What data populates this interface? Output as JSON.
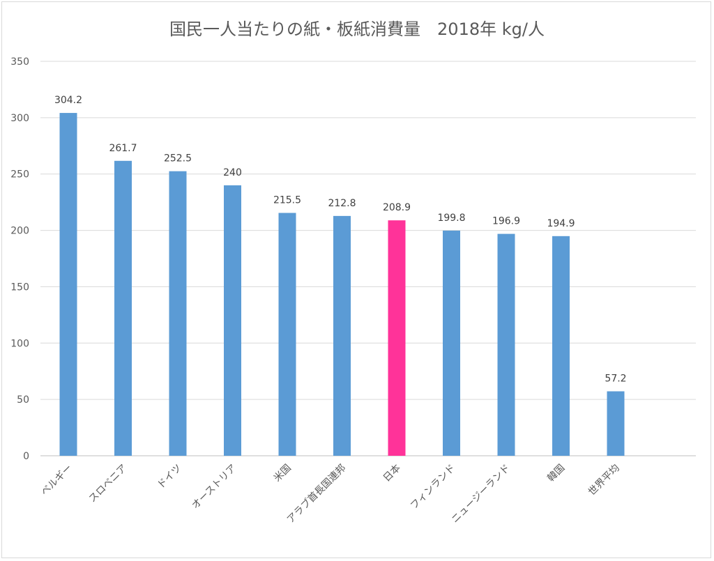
{
  "chart_data": {
    "type": "bar",
    "title": "国民一人当たりの紙・板紙消費量　2018年 kg/人",
    "xlabel": "",
    "ylabel": "",
    "ylim": [
      0,
      350
    ],
    "yticks": [
      0,
      50,
      100,
      150,
      200,
      250,
      300,
      350
    ],
    "grid": true,
    "categories": [
      "ベルギー",
      "スロベニア",
      "ドイツ",
      "オーストリア",
      "米国",
      "アラブ首長国連邦",
      "日本",
      "フィンランド",
      "ニュージーランド",
      "韓国",
      "世界平均"
    ],
    "values": [
      304.2,
      261.7,
      252.5,
      240,
      215.5,
      212.8,
      208.9,
      199.8,
      196.9,
      194.9,
      57.2
    ],
    "data_labels": [
      "304.2",
      "261.7",
      "252.5",
      "240",
      "215.5",
      "212.8",
      "208.9",
      "199.8",
      "196.9",
      "194.9",
      "57.2"
    ],
    "colors": {
      "default": "#5b9bd5",
      "highlight": "#ff3399",
      "grid": "#d9d9d9",
      "axis": "#bfbfbf"
    },
    "highlight_category": "日本"
  }
}
